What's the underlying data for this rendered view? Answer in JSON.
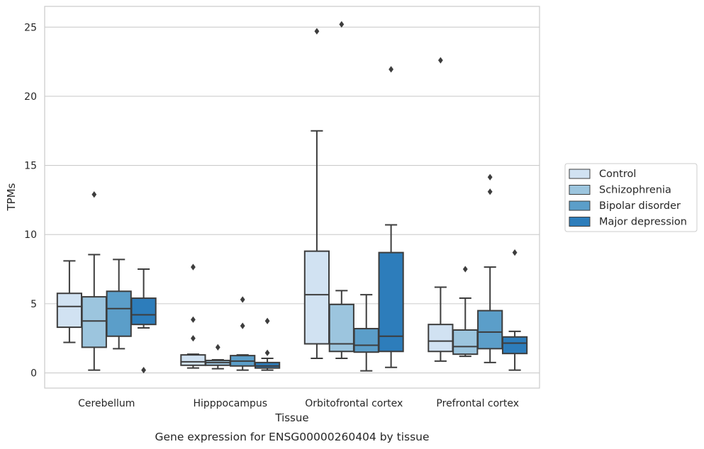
{
  "caption": "Gene expression for ENSG00000260404 by tissue",
  "chart_data": {
    "type": "box",
    "xlabel": "Tissue",
    "ylabel": "TPMs",
    "ylim": [
      -1.1,
      26.5
    ],
    "yticks": [
      0,
      5,
      10,
      15,
      20,
      25
    ],
    "grid": "horizontal",
    "legend_position": "right",
    "categories": [
      "Cerebellum",
      "Hipppocampus",
      "Orbitofrontal cortex",
      "Prefrontal cortex"
    ],
    "series": [
      {
        "name": "Control",
        "color": "#d1e2f2",
        "boxes": [
          {
            "whislo": 2.2,
            "q1": 3.3,
            "med": 4.8,
            "q3": 5.75,
            "whishi": 8.1,
            "fliers": []
          },
          {
            "whislo": 0.35,
            "q1": 0.55,
            "med": 0.8,
            "q3": 1.3,
            "whishi": 1.35,
            "fliers": [
              7.65,
              3.85,
              2.5
            ]
          },
          {
            "whislo": 1.05,
            "q1": 2.1,
            "med": 5.65,
            "q3": 8.8,
            "whishi": 17.5,
            "fliers": [
              24.7
            ]
          },
          {
            "whislo": 0.85,
            "q1": 1.55,
            "med": 2.3,
            "q3": 3.5,
            "whishi": 6.2,
            "fliers": [
              22.6
            ]
          }
        ]
      },
      {
        "name": "Schizophrenia",
        "color": "#9cc5de",
        "boxes": [
          {
            "whislo": 0.2,
            "q1": 1.85,
            "med": 3.75,
            "q3": 5.5,
            "whishi": 8.55,
            "fliers": [
              12.9
            ]
          },
          {
            "whislo": 0.3,
            "q1": 0.55,
            "med": 0.75,
            "q3": 0.9,
            "whishi": 0.95,
            "fliers": [
              1.85
            ]
          },
          {
            "whislo": 1.05,
            "q1": 1.55,
            "med": 2.1,
            "q3": 4.95,
            "whishi": 5.95,
            "fliers": [
              25.2
            ]
          },
          {
            "whislo": 1.2,
            "q1": 1.35,
            "med": 1.9,
            "q3": 3.1,
            "whishi": 5.4,
            "fliers": [
              7.5
            ]
          }
        ]
      },
      {
        "name": "Bipolar disorder",
        "color": "#5b9ec9",
        "boxes": [
          {
            "whislo": 1.75,
            "q1": 2.65,
            "med": 4.65,
            "q3": 5.9,
            "whishi": 8.2,
            "fliers": []
          },
          {
            "whislo": 0.2,
            "q1": 0.5,
            "med": 0.85,
            "q3": 1.25,
            "whishi": 1.3,
            "fliers": [
              5.3,
              3.4
            ]
          },
          {
            "whislo": 0.15,
            "q1": 1.5,
            "med": 2.0,
            "q3": 3.2,
            "whishi": 5.65,
            "fliers": []
          },
          {
            "whislo": 0.75,
            "q1": 1.75,
            "med": 2.95,
            "q3": 4.5,
            "whishi": 7.65,
            "fliers": [
              14.15,
              13.1
            ]
          }
        ]
      },
      {
        "name": "Major depression",
        "color": "#2d7dbb",
        "boxes": [
          {
            "whislo": 3.25,
            "q1": 3.5,
            "med": 4.2,
            "q3": 5.4,
            "whishi": 7.5,
            "fliers": [
              0.2
            ]
          },
          {
            "whislo": 0.2,
            "q1": 0.35,
            "med": 0.5,
            "q3": 0.75,
            "whishi": 1.05,
            "fliers": [
              3.75,
              1.45
            ]
          },
          {
            "whislo": 0.4,
            "q1": 1.55,
            "med": 2.65,
            "q3": 8.7,
            "whishi": 10.7,
            "fliers": [
              21.95
            ]
          },
          {
            "whislo": 0.2,
            "q1": 1.4,
            "med": 2.15,
            "q3": 2.6,
            "whishi": 3.0,
            "fliers": [
              8.7
            ]
          }
        ]
      }
    ]
  }
}
